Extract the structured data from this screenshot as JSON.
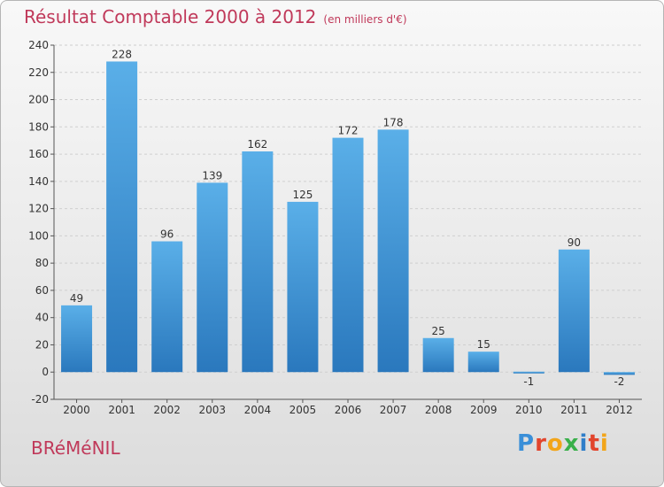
{
  "header": {
    "title": "Résultat Comptable 2000 à 2012",
    "subtitle": "(en milliers d'€)"
  },
  "footer": {
    "commune": "BRéMéNIL",
    "logo_text": "Proxiti"
  },
  "colors": {
    "bar_top": "#5aafe8",
    "bar_bottom": "#2a78bd",
    "title": "#c0395a"
  },
  "chart_data": {
    "type": "bar",
    "title": "Résultat Comptable 2000 à 2012",
    "xlabel": "",
    "ylabel": "",
    "categories": [
      "2000",
      "2001",
      "2002",
      "2003",
      "2004",
      "2005",
      "2006",
      "2007",
      "2008",
      "2009",
      "2010",
      "2011",
      "2012"
    ],
    "values": [
      49,
      228,
      96,
      139,
      162,
      125,
      172,
      178,
      25,
      15,
      -1,
      90,
      -2
    ],
    "ylim": [
      -20,
      240
    ],
    "yticks": [
      -20,
      0,
      20,
      40,
      60,
      80,
      100,
      120,
      140,
      160,
      180,
      200,
      220,
      240
    ],
    "grid": true
  }
}
